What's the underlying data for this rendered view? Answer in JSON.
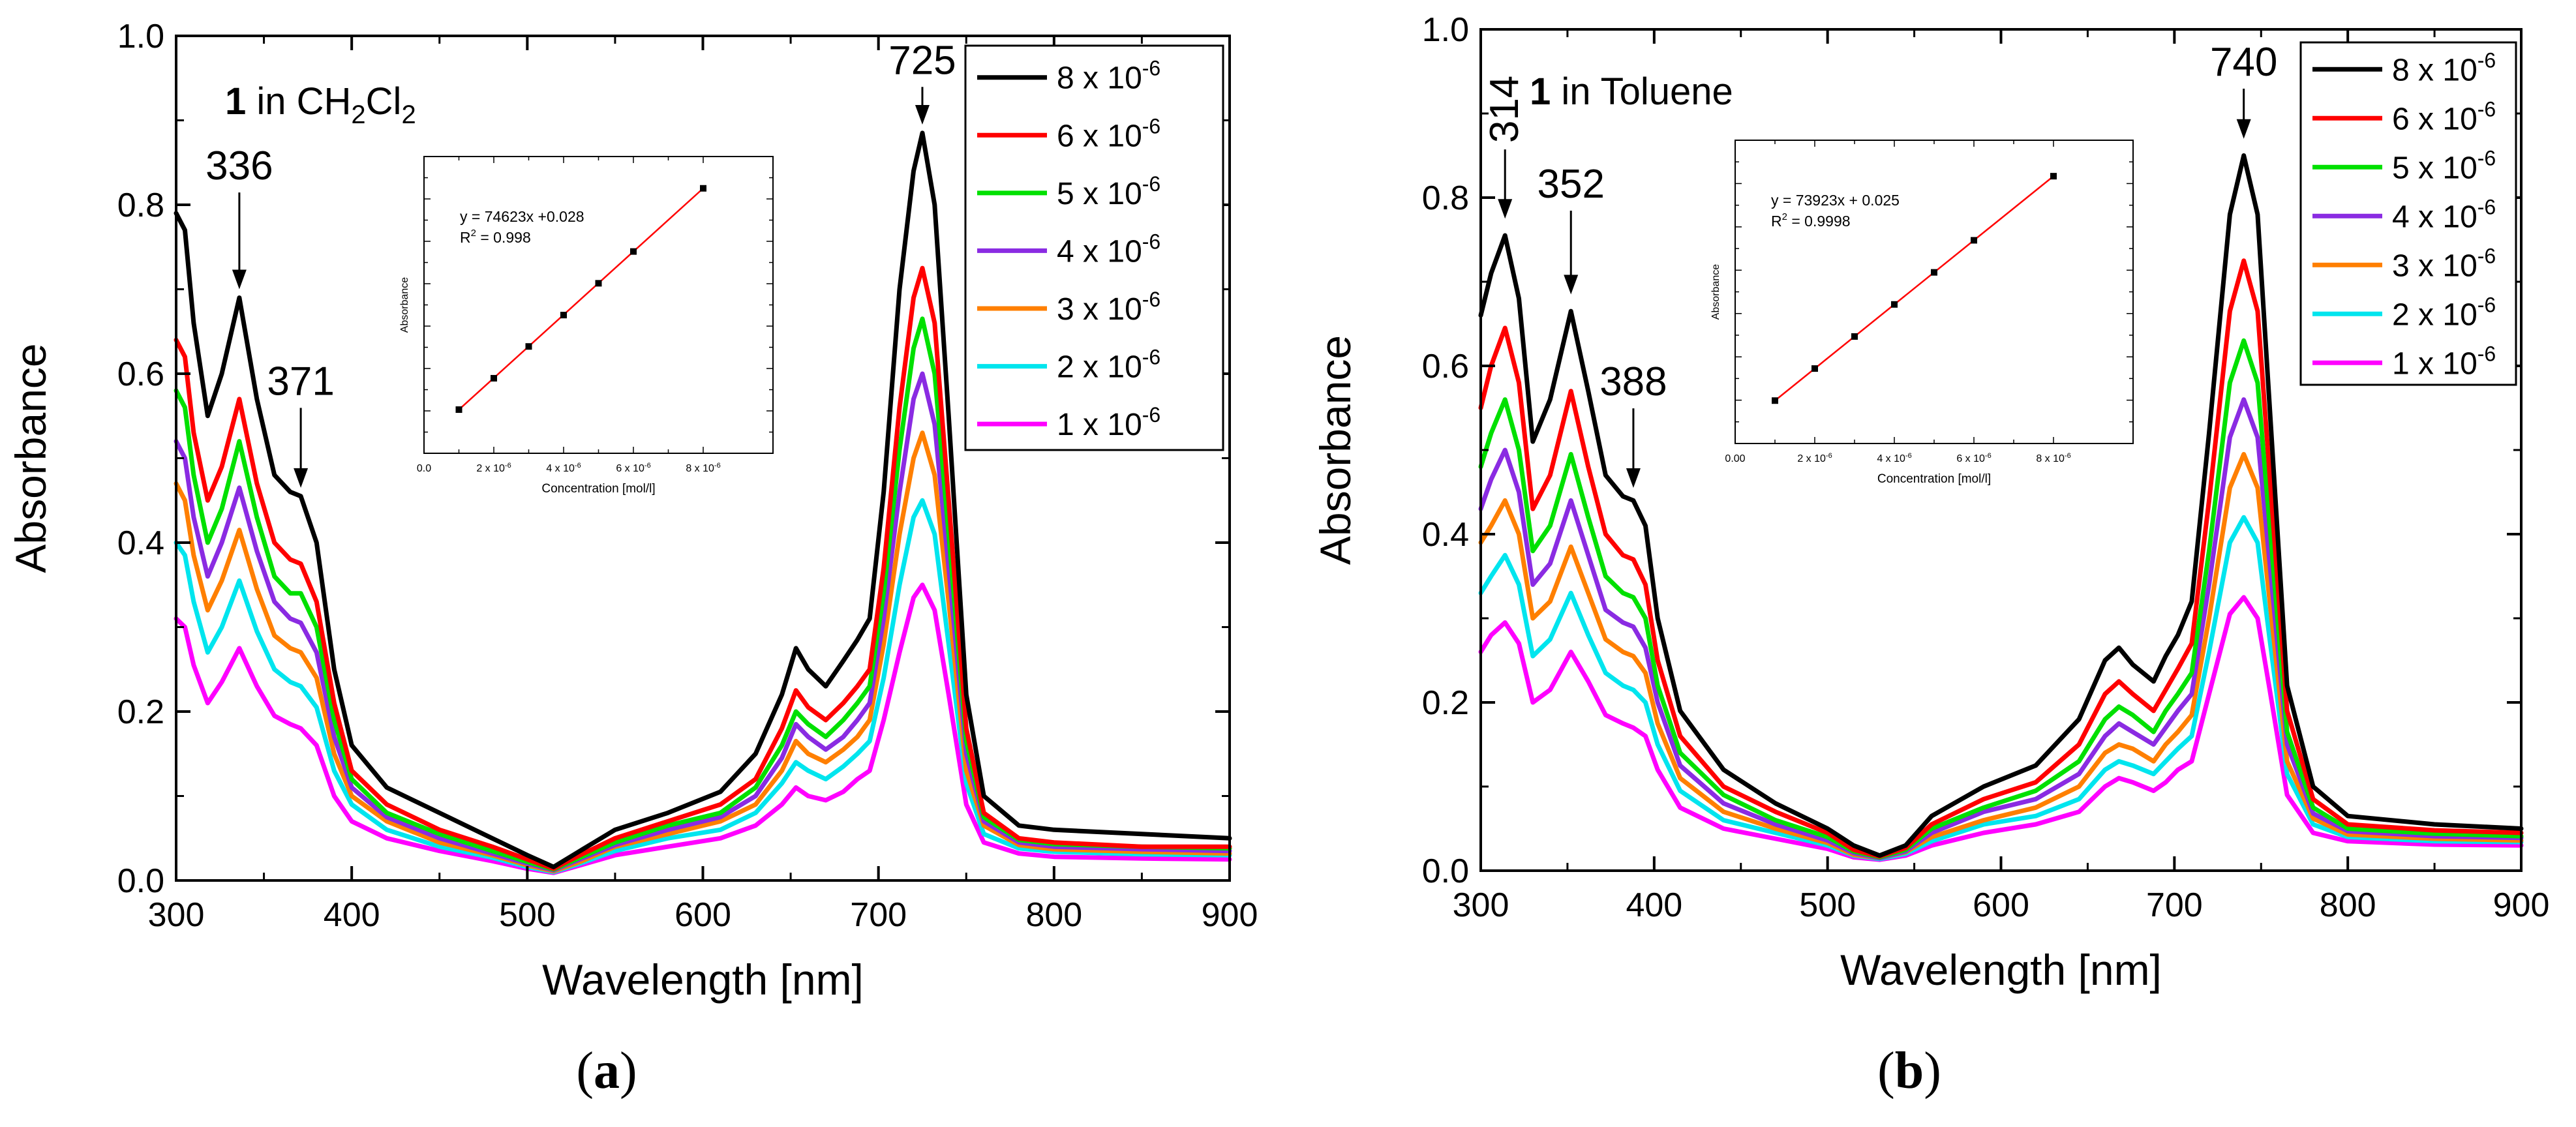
{
  "figure": {
    "panels": [
      {
        "id": "a",
        "caption_open": "(",
        "caption_letter": "a",
        "caption_close": ")"
      },
      {
        "id": "b",
        "caption_open": "(",
        "caption_letter": "b",
        "caption_close": ")"
      }
    ]
  },
  "colors": {
    "8e-6": "#000000",
    "6e-6": "#ff0000",
    "5e-6": "#00e000",
    "4e-6": "#8a2be2",
    "3e-6": "#ff7f00",
    "2e-6": "#00e5ee",
    "1e-6": "#ff00ff"
  },
  "chart_data": [
    {
      "type": "line",
      "panel": "a",
      "title_compound": "1",
      "title_solvent": "in CH2Cl2",
      "title_parts": [
        " in CH",
        "2",
        "Cl",
        "2"
      ],
      "xlabel": "Wavelength [nm]",
      "ylabel": "Absorbance",
      "xlim": [
        300,
        900
      ],
      "ylim": [
        0.0,
        1.0
      ],
      "xticks": [
        300,
        400,
        500,
        600,
        700,
        800,
        900
      ],
      "yticks": [
        0.0,
        0.2,
        0.4,
        0.6,
        0.8,
        1.0
      ],
      "xtick_labels": [
        "300",
        "400",
        "500",
        "600",
        "700",
        "800",
        "900"
      ],
      "ytick_labels": [
        "0.0",
        "0.2",
        "0.4",
        "0.6",
        "0.8",
        "1.0"
      ],
      "x": [
        300,
        305,
        310,
        318,
        326,
        336,
        346,
        356,
        365,
        371,
        380,
        390,
        400,
        420,
        450,
        480,
        500,
        515,
        530,
        550,
        580,
        610,
        630,
        645,
        653,
        660,
        670,
        680,
        688,
        695,
        703,
        712,
        720,
        725,
        732,
        740,
        750,
        760,
        780,
        800,
        850,
        900
      ],
      "series": [
        {
          "name": "8 x 10-6",
          "color_key": "8e-6",
          "values": [
            0.79,
            0.77,
            0.66,
            0.55,
            0.6,
            0.69,
            0.57,
            0.48,
            0.46,
            0.455,
            0.4,
            0.25,
            0.16,
            0.11,
            0.08,
            0.05,
            0.03,
            0.016,
            0.035,
            0.06,
            0.08,
            0.105,
            0.15,
            0.22,
            0.275,
            0.25,
            0.23,
            0.26,
            0.285,
            0.31,
            0.46,
            0.7,
            0.84,
            0.885,
            0.8,
            0.55,
            0.22,
            0.1,
            0.065,
            0.06,
            0.055,
            0.05
          ]
        },
        {
          "name": "6 x 10-6",
          "color_key": "6e-6",
          "values": [
            0.64,
            0.62,
            0.53,
            0.45,
            0.49,
            0.57,
            0.47,
            0.4,
            0.38,
            0.375,
            0.33,
            0.21,
            0.13,
            0.09,
            0.06,
            0.04,
            0.025,
            0.014,
            0.03,
            0.05,
            0.07,
            0.09,
            0.12,
            0.18,
            0.225,
            0.205,
            0.19,
            0.21,
            0.23,
            0.25,
            0.37,
            0.56,
            0.69,
            0.725,
            0.66,
            0.45,
            0.18,
            0.08,
            0.05,
            0.045,
            0.04,
            0.04
          ]
        },
        {
          "name": "5 x 10-6",
          "color_key": "5e-6",
          "values": [
            0.58,
            0.56,
            0.48,
            0.4,
            0.44,
            0.52,
            0.43,
            0.36,
            0.34,
            0.34,
            0.3,
            0.19,
            0.12,
            0.08,
            0.055,
            0.035,
            0.022,
            0.013,
            0.027,
            0.045,
            0.065,
            0.08,
            0.11,
            0.16,
            0.2,
            0.185,
            0.17,
            0.19,
            0.21,
            0.23,
            0.34,
            0.51,
            0.63,
            0.665,
            0.6,
            0.41,
            0.165,
            0.075,
            0.048,
            0.043,
            0.04,
            0.038
          ]
        },
        {
          "name": "4 x 10-6",
          "color_key": "4e-6",
          "values": [
            0.52,
            0.5,
            0.43,
            0.36,
            0.4,
            0.465,
            0.39,
            0.33,
            0.31,
            0.305,
            0.27,
            0.17,
            0.11,
            0.075,
            0.05,
            0.032,
            0.02,
            0.012,
            0.025,
            0.042,
            0.06,
            0.075,
            0.1,
            0.145,
            0.185,
            0.17,
            0.155,
            0.17,
            0.19,
            0.21,
            0.31,
            0.46,
            0.57,
            0.6,
            0.54,
            0.37,
            0.15,
            0.07,
            0.045,
            0.04,
            0.037,
            0.035
          ]
        },
        {
          "name": "3 x 10-6",
          "color_key": "3e-6",
          "values": [
            0.47,
            0.45,
            0.385,
            0.32,
            0.355,
            0.415,
            0.345,
            0.29,
            0.275,
            0.27,
            0.24,
            0.15,
            0.1,
            0.07,
            0.045,
            0.03,
            0.018,
            0.011,
            0.022,
            0.04,
            0.055,
            0.07,
            0.09,
            0.13,
            0.165,
            0.15,
            0.14,
            0.155,
            0.17,
            0.19,
            0.28,
            0.41,
            0.5,
            0.53,
            0.48,
            0.33,
            0.13,
            0.065,
            0.042,
            0.037,
            0.034,
            0.032
          ]
        },
        {
          "name": "2 x 10-6",
          "color_key": "2e-6",
          "values": [
            0.4,
            0.385,
            0.33,
            0.27,
            0.3,
            0.355,
            0.295,
            0.25,
            0.235,
            0.23,
            0.205,
            0.13,
            0.09,
            0.06,
            0.04,
            0.027,
            0.016,
            0.01,
            0.02,
            0.035,
            0.05,
            0.06,
            0.08,
            0.115,
            0.14,
            0.13,
            0.12,
            0.135,
            0.15,
            0.165,
            0.24,
            0.35,
            0.43,
            0.45,
            0.41,
            0.28,
            0.115,
            0.055,
            0.038,
            0.034,
            0.031,
            0.03
          ]
        },
        {
          "name": "1 x 10-6",
          "color_key": "1e-6",
          "values": [
            0.31,
            0.3,
            0.255,
            0.21,
            0.235,
            0.275,
            0.23,
            0.195,
            0.185,
            0.18,
            0.16,
            0.1,
            0.07,
            0.05,
            0.035,
            0.023,
            0.014,
            0.009,
            0.018,
            0.03,
            0.04,
            0.05,
            0.065,
            0.09,
            0.11,
            0.1,
            0.095,
            0.105,
            0.12,
            0.13,
            0.19,
            0.27,
            0.335,
            0.35,
            0.32,
            0.22,
            0.09,
            0.045,
            0.032,
            0.028,
            0.026,
            0.025
          ]
        }
      ],
      "legend_labels": [
        "8 x 10",
        "6 x 10",
        "5 x 10",
        "4 x 10",
        "3 x 10",
        "2 x 10",
        "1 x 10"
      ],
      "legend_exponent": "-6",
      "legend_placement": "top-right",
      "annotations": [
        {
          "text": "336",
          "x": 336,
          "y_tip": 0.7,
          "text_y": 0.83,
          "orient": "horizontal"
        },
        {
          "text": "371",
          "x": 371,
          "y_tip": 0.465,
          "text_y": 0.575,
          "orient": "horizontal"
        },
        {
          "text": "725",
          "x": 725,
          "y_tip": 0.895,
          "text_y": 0.955,
          "orient": "horizontal"
        }
      ],
      "inset": {
        "type": "scatter",
        "equation": "y = 74623x +0.028",
        "r2_prefix": "R",
        "r2_sup": "2",
        "r2_value": " = 0.998",
        "xlabel": "Concentration [mol/l]",
        "ylabel": "Absorbance",
        "x_mantissa": [
          1,
          2,
          3,
          4,
          5,
          6,
          8
        ],
        "x_exp": -6,
        "y": [
          0.103,
          0.177,
          0.252,
          0.326,
          0.401,
          0.476,
          0.625
        ],
        "xlim": [
          0,
          10
        ],
        "ylim": [
          0.0,
          0.7
        ],
        "xtick_values": [
          0,
          2,
          4,
          6,
          8
        ],
        "xtick_labels": [
          "0.0",
          "2 x 10",
          "4 x 10",
          "6 x 10",
          "8 x 10"
        ],
        "xtick_exponent": "-6",
        "fit_color": "#ff0000"
      }
    },
    {
      "type": "line",
      "panel": "b",
      "title_compound": "1",
      "title_solvent": "in Toluene",
      "title_parts": [
        " in Toluene"
      ],
      "xlabel": "Wavelength [nm]",
      "ylabel": "Absorbance",
      "xlim": [
        300,
        900
      ],
      "ylim": [
        0.0,
        1.0
      ],
      "xticks": [
        300,
        400,
        500,
        600,
        700,
        800,
        900
      ],
      "yticks": [
        0.0,
        0.2,
        0.4,
        0.6,
        0.8,
        1.0
      ],
      "xtick_labels": [
        "300",
        "400",
        "500",
        "600",
        "700",
        "800",
        "900"
      ],
      "ytick_labels": [
        "0.0",
        "0.2",
        "0.4",
        "0.6",
        "0.8",
        "1.0"
      ],
      "x": [
        300,
        306,
        314,
        322,
        330,
        340,
        352,
        362,
        372,
        382,
        388,
        395,
        402,
        415,
        440,
        470,
        500,
        515,
        530,
        545,
        560,
        590,
        620,
        645,
        660,
        668,
        676,
        688,
        695,
        702,
        710,
        720,
        732,
        740,
        748,
        755,
        765,
        780,
        800,
        850,
        900
      ],
      "series": [
        {
          "name": "8 x 10-6",
          "color_key": "8e-6",
          "values": [
            0.66,
            0.71,
            0.755,
            0.68,
            0.51,
            0.56,
            0.665,
            0.57,
            0.47,
            0.445,
            0.44,
            0.41,
            0.3,
            0.19,
            0.12,
            0.08,
            0.05,
            0.03,
            0.018,
            0.03,
            0.065,
            0.1,
            0.125,
            0.18,
            0.25,
            0.265,
            0.245,
            0.225,
            0.255,
            0.28,
            0.32,
            0.52,
            0.78,
            0.85,
            0.78,
            0.55,
            0.22,
            0.1,
            0.065,
            0.055,
            0.05
          ]
        },
        {
          "name": "6 x 10-6",
          "color_key": "6e-6",
          "values": [
            0.55,
            0.6,
            0.645,
            0.58,
            0.43,
            0.47,
            0.57,
            0.48,
            0.4,
            0.375,
            0.37,
            0.34,
            0.25,
            0.16,
            0.1,
            0.07,
            0.045,
            0.025,
            0.017,
            0.027,
            0.055,
            0.085,
            0.105,
            0.15,
            0.21,
            0.225,
            0.21,
            0.19,
            0.215,
            0.24,
            0.27,
            0.44,
            0.665,
            0.725,
            0.665,
            0.47,
            0.19,
            0.085,
            0.055,
            0.048,
            0.045
          ]
        },
        {
          "name": "5 x 10-6",
          "color_key": "5e-6",
          "values": [
            0.48,
            0.52,
            0.56,
            0.5,
            0.38,
            0.41,
            0.495,
            0.42,
            0.35,
            0.33,
            0.325,
            0.3,
            0.22,
            0.14,
            0.09,
            0.06,
            0.04,
            0.023,
            0.016,
            0.025,
            0.05,
            0.075,
            0.095,
            0.13,
            0.18,
            0.195,
            0.185,
            0.165,
            0.19,
            0.21,
            0.235,
            0.38,
            0.58,
            0.63,
            0.58,
            0.41,
            0.165,
            0.075,
            0.05,
            0.044,
            0.041
          ]
        },
        {
          "name": "4 x 10-6",
          "color_key": "4e-6",
          "values": [
            0.43,
            0.465,
            0.5,
            0.45,
            0.34,
            0.365,
            0.44,
            0.375,
            0.31,
            0.295,
            0.29,
            0.265,
            0.2,
            0.125,
            0.08,
            0.055,
            0.036,
            0.021,
            0.015,
            0.023,
            0.045,
            0.07,
            0.085,
            0.115,
            0.16,
            0.175,
            0.165,
            0.15,
            0.17,
            0.19,
            0.21,
            0.34,
            0.515,
            0.56,
            0.515,
            0.365,
            0.15,
            0.068,
            0.047,
            0.041,
            0.039
          ]
        },
        {
          "name": "3 x 10-6",
          "color_key": "3e-6",
          "values": [
            0.39,
            0.41,
            0.44,
            0.4,
            0.3,
            0.32,
            0.385,
            0.33,
            0.275,
            0.26,
            0.255,
            0.235,
            0.175,
            0.11,
            0.07,
            0.05,
            0.033,
            0.019,
            0.015,
            0.022,
            0.04,
            0.06,
            0.075,
            0.1,
            0.14,
            0.15,
            0.145,
            0.13,
            0.15,
            0.165,
            0.185,
            0.3,
            0.455,
            0.495,
            0.455,
            0.32,
            0.13,
            0.062,
            0.043,
            0.038,
            0.036
          ]
        },
        {
          "name": "2 x 10-6",
          "color_key": "2e-6",
          "values": [
            0.33,
            0.35,
            0.375,
            0.34,
            0.255,
            0.275,
            0.33,
            0.28,
            0.235,
            0.22,
            0.215,
            0.2,
            0.15,
            0.095,
            0.06,
            0.045,
            0.03,
            0.018,
            0.014,
            0.02,
            0.035,
            0.055,
            0.065,
            0.085,
            0.12,
            0.13,
            0.125,
            0.115,
            0.13,
            0.145,
            0.16,
            0.26,
            0.39,
            0.42,
            0.39,
            0.275,
            0.115,
            0.055,
            0.04,
            0.035,
            0.034
          ]
        },
        {
          "name": "1 x 10-6",
          "color_key": "1e-6",
          "values": [
            0.26,
            0.28,
            0.295,
            0.27,
            0.2,
            0.215,
            0.26,
            0.225,
            0.185,
            0.175,
            0.17,
            0.16,
            0.12,
            0.075,
            0.05,
            0.038,
            0.026,
            0.016,
            0.013,
            0.018,
            0.03,
            0.045,
            0.055,
            0.07,
            0.1,
            0.11,
            0.105,
            0.095,
            0.105,
            0.12,
            0.13,
            0.21,
            0.305,
            0.325,
            0.3,
            0.215,
            0.09,
            0.045,
            0.035,
            0.031,
            0.03
          ]
        }
      ],
      "legend_labels": [
        "8 x 10",
        "6 x 10",
        "5 x 10",
        "4 x 10",
        "3 x 10",
        "2 x 10",
        "1 x 10"
      ],
      "legend_exponent": "-6",
      "legend_placement": "top-right",
      "annotations": [
        {
          "text": "314",
          "x": 314,
          "y_tip": 0.775,
          "text_y": 0.865,
          "orient": "vertical"
        },
        {
          "text": "352",
          "x": 352,
          "y_tip": 0.685,
          "text_y": 0.8,
          "orient": "horizontal"
        },
        {
          "text": "388",
          "x": 388,
          "y_tip": 0.455,
          "text_y": 0.565,
          "orient": "horizontal"
        },
        {
          "text": "740",
          "x": 740,
          "y_tip": 0.87,
          "text_y": 0.945,
          "orient": "horizontal"
        }
      ],
      "inset": {
        "type": "scatter",
        "equation": "y = 73923x + 0.025",
        "r2_prefix": "R",
        "r2_sup": "2",
        "r2_value": " = 0.9998",
        "xlabel": "Concentration [mol/l]",
        "ylabel": "Absorbance",
        "x_mantissa": [
          1,
          2,
          3,
          4,
          5,
          6,
          8
        ],
        "x_exp": -6,
        "y": [
          0.099,
          0.173,
          0.247,
          0.321,
          0.395,
          0.469,
          0.617
        ],
        "xlim": [
          0,
          10
        ],
        "ylim": [
          0.0,
          0.7
        ],
        "xtick_values": [
          0,
          2,
          4,
          6,
          8
        ],
        "xtick_labels": [
          "0.00",
          "2 x 10",
          "4 x 10",
          "6 x 10",
          "8 x 10"
        ],
        "xtick_exponent": "-6",
        "fit_color": "#ff0000"
      }
    }
  ]
}
